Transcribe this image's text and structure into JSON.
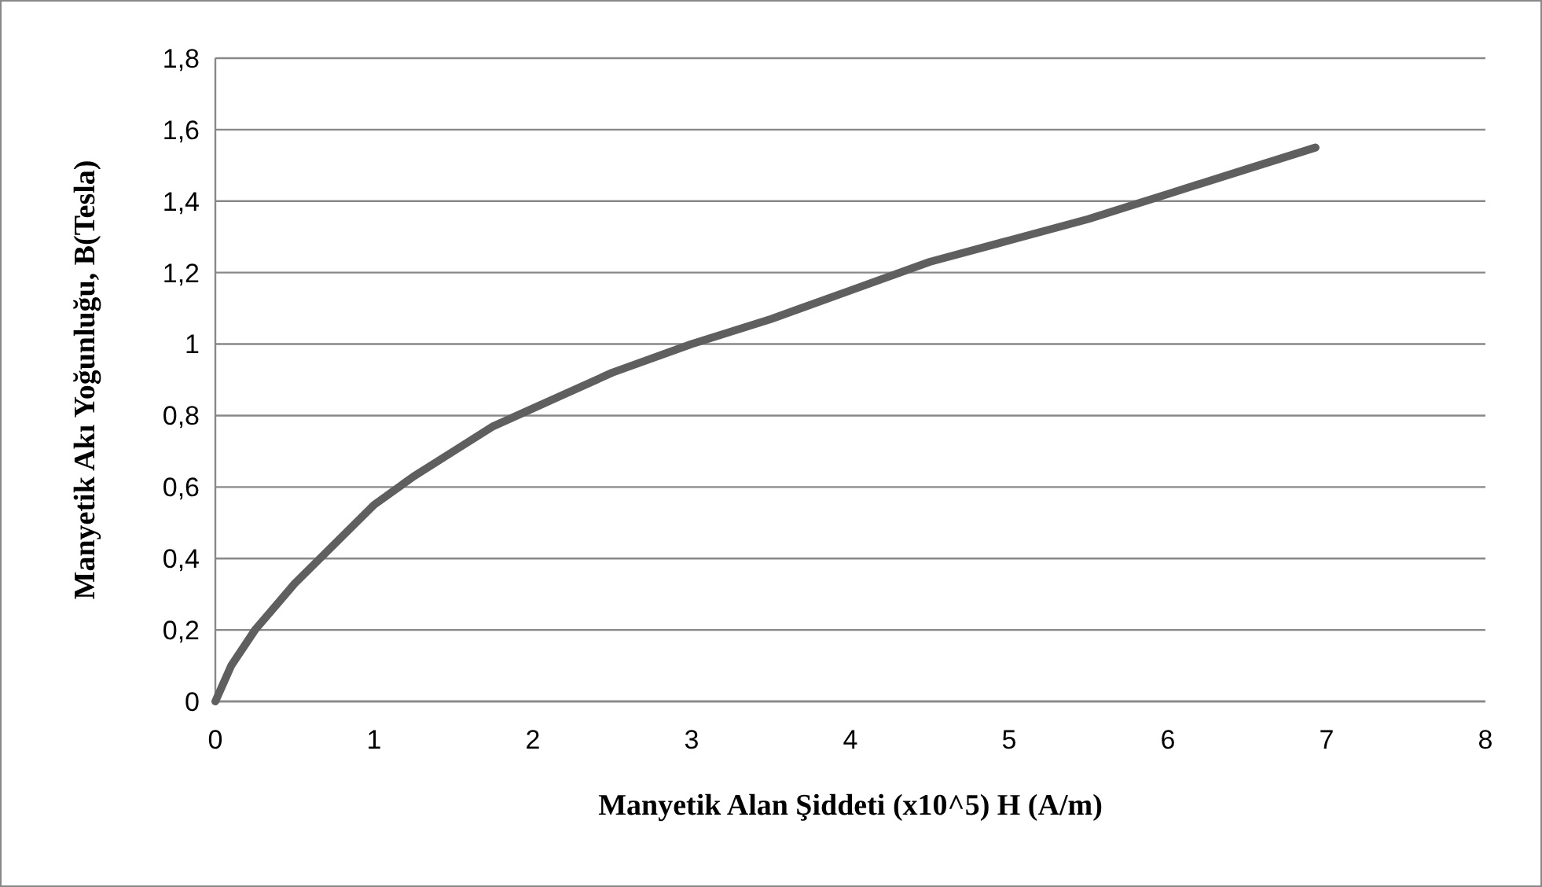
{
  "chart_data": {
    "type": "line",
    "xlabel": "Manyetik Alan Şiddeti (x10^5) H (A/m)",
    "ylabel": "Manyetik Akı Yoğunluğu, B(Tesla)",
    "x": [
      0,
      0.1,
      0.25,
      0.5,
      0.75,
      1,
      1.25,
      1.5,
      1.75,
      2,
      2.5,
      3,
      3.5,
      4,
      4.5,
      5,
      5.5,
      6,
      6.5,
      6.93
    ],
    "series": [
      {
        "color": "#5f5f5f",
        "values": [
          0,
          0.1,
          0.2,
          0.33,
          0.44,
          0.55,
          0.63,
          0.7,
          0.77,
          0.82,
          0.92,
          1.0,
          1.07,
          1.15,
          1.23,
          1.29,
          1.35,
          1.42,
          1.49,
          1.55
        ]
      }
    ],
    "xlim": [
      0,
      8
    ],
    "xticks": [
      0,
      1,
      2,
      3,
      4,
      5,
      6,
      7,
      8
    ],
    "ylim": [
      0,
      1.8
    ],
    "yticks": [
      0,
      {
        "value": 0.2,
        "label": "0,2"
      },
      {
        "value": 0.4,
        "label": "0,4"
      },
      {
        "value": 0.6,
        "label": "0,6"
      },
      {
        "value": 0.8,
        "label": "0,8"
      },
      1,
      {
        "value": 1.2,
        "label": "1,2"
      },
      {
        "value": 1.4,
        "label": "1,4"
      },
      {
        "value": 1.6,
        "label": "1,6"
      },
      {
        "value": 1.8,
        "label": "1,8"
      }
    ],
    "grid": "y",
    "marker": "none",
    "line_style": "solid"
  }
}
